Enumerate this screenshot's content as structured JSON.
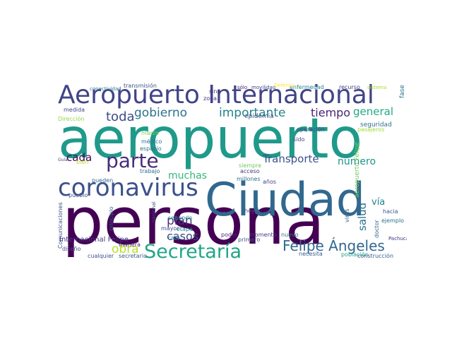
{
  "words": [
    {
      "text": "aeropuerto",
      "color": "#1f9a8a"
    },
    {
      "text": "persona",
      "color": "#440154"
    },
    {
      "text": "Ciudad",
      "color": "#31688e"
    },
    {
      "text": "Aeropuerto Internacional",
      "color": "#414487"
    },
    {
      "text": "coronavirus",
      "color": "#3b518b"
    },
    {
      "text": "Secretaría",
      "color": "#21a585"
    },
    {
      "text": "parte",
      "color": "#472c7a"
    },
    {
      "text": "gobierno",
      "color": "#2c728e"
    },
    {
      "text": "importante",
      "color": "#26818e"
    },
    {
      "text": "tiempo",
      "color": "#482475"
    },
    {
      "text": "general",
      "color": "#22a884"
    },
    {
      "text": "toda",
      "color": "#3e4a89"
    },
    {
      "text": "cada",
      "color": "#440154"
    },
    {
      "text": "obra",
      "color": "#b8de29"
    },
    {
      "text": "Felipe Ángeles",
      "color": "#31688e"
    },
    {
      "text": "Transporte",
      "color": "#3b528b"
    },
    {
      "text": "número",
      "color": "#20938c"
    },
    {
      "text": "salud",
      "color": "#2d708e"
    },
    {
      "text": "vía",
      "color": "#25848e"
    },
    {
      "text": "plan",
      "color": "#46327e"
    },
    {
      "text": "muchas",
      "color": "#35b779"
    },
    {
      "text": "casos",
      "color": "#3f4788"
    },
    {
      "text": "Internacional Felipe",
      "color": "#453882"
    },
    {
      "text": "aeropuerto Felipe",
      "color": "#6ece58"
    },
    {
      "text": "transmisión",
      "color": "#3b528b"
    },
    {
      "text": "conectividad",
      "color": "#2a788e"
    },
    {
      "text": "enfermedad",
      "color": "#25848e"
    },
    {
      "text": "recurso",
      "color": "#443983"
    },
    {
      "text": "sistema",
      "color": "#addc30"
    },
    {
      "text": "movilidad",
      "color": "#414487"
    },
    {
      "text": "sólo",
      "color": "#482878"
    },
    {
      "text": "Defensa",
      "color": "#fde725"
    },
    {
      "text": "fase",
      "color": "#2c728e"
    },
    {
      "text": "medida",
      "color": "#3e4989"
    },
    {
      "text": "zona",
      "color": "#46337e"
    },
    {
      "text": "sino",
      "color": "#472d7b"
    },
    {
      "text": "epidemia",
      "color": "#3b528b"
    },
    {
      "text": "seguridad",
      "color": "#2d708e"
    },
    {
      "text": "Dirección",
      "color": "#8fd744"
    },
    {
      "text": "pasajeros",
      "color": "#a2da37"
    },
    {
      "text": "operación",
      "color": "#3f4889"
    },
    {
      "text": "sido",
      "color": "#433e85"
    },
    {
      "text": "pueblo",
      "color": "#3e4a89"
    },
    {
      "text": "bien",
      "color": "#b5de2b"
    },
    {
      "text": "pueden",
      "color": "#2f6b8e"
    },
    {
      "text": "trabajo",
      "color": "#2f6c8e"
    },
    {
      "text": "espacio",
      "color": "#2e6e8e"
    },
    {
      "text": "marzo",
      "color": "#7ad151"
    },
    {
      "text": "médico",
      "color": "#2c738e"
    },
    {
      "text": "acceso",
      "color": "#453781"
    },
    {
      "text": "millones",
      "color": "#2d708e"
    },
    {
      "text": "siempre",
      "color": "#6ccd5a"
    },
    {
      "text": "años",
      "color": "#414287"
    },
    {
      "text": "Comunicaciones",
      "color": "#3b528b"
    },
    {
      "text": "principio",
      "color": "#355f8d"
    },
    {
      "text": "nacional",
      "color": "#3e4c8a"
    },
    {
      "text": "segundo",
      "color": "#20928c"
    },
    {
      "text": "cabo",
      "color": "#21918c"
    },
    {
      "text": "hoy",
      "color": "#3d4d8a"
    },
    {
      "text": "mayor",
      "color": "#3d4e8a"
    },
    {
      "text": "etapa",
      "color": "#24868e"
    },
    {
      "text": "poder",
      "color": "#482979"
    },
    {
      "text": "momento",
      "color": "#443a83"
    },
    {
      "text": "nuevo",
      "color": "#2a778e"
    },
    {
      "text": "población",
      "color": "#1fa187"
    },
    {
      "text": "construcción",
      "color": "#355e8d"
    },
    {
      "text": "doctor",
      "color": "#31678e"
    },
    {
      "text": "hacia",
      "color": "#38588c"
    },
    {
      "text": "ejemplo",
      "color": "#2c718e"
    },
    {
      "text": "diseño",
      "color": "#3f4788"
    },
    {
      "text": "manera",
      "color": "#481f70"
    },
    {
      "text": "cualquier",
      "color": "#3b518b"
    },
    {
      "text": "secretario",
      "color": "#375a8c"
    },
    {
      "text": "primero",
      "color": "#39568c"
    },
    {
      "text": "necesita",
      "color": "#375b8d"
    },
    {
      "text": "virus",
      "color": "#31688e"
    },
    {
      "text": "Guía",
      "color": "#404588"
    },
    {
      "text": "Pachuca",
      "color": "#46307e"
    }
  ]
}
